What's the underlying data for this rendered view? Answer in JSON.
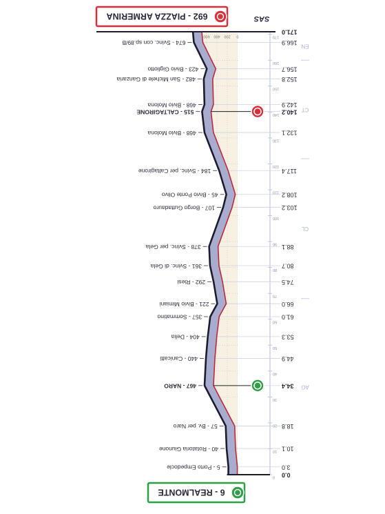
{
  "chart_data": {
    "type": "line",
    "logo": "SAS",
    "x": [
      0,
      3,
      10.1,
      18.8,
      34.4,
      44.9,
      53.3,
      61,
      66,
      74.5,
      80.7,
      88.1,
      103.2,
      108.2,
      117.4,
      132.1,
      140.2,
      142.9,
      152.8,
      156.7,
      166.9,
      171
    ],
    "x_labels": [
      "0.0",
      "3.0",
      "10.1",
      "18.8",
      "34.4",
      "44.9",
      "53.3",
      "61.0",
      "66.0",
      "74.5",
      "80.7",
      "88.1",
      "103.2",
      "108.2",
      "117.4",
      "132.1",
      "140.2",
      "142.9",
      "152.8",
      "156.7",
      "166.9",
      "171.0"
    ],
    "values": [
      6,
      5,
      40,
      57,
      467,
      440,
      404,
      357,
      221,
      292,
      361,
      378,
      107,
      45,
      184,
      468,
      515,
      468,
      482,
      423,
      674,
      692
    ],
    "names": [
      "6 - REALMONTE",
      "5 - Porto Empedocle",
      "40 - Rotatoria Giunone",
      "57 - Bv. per Naro",
      "467 - NARO",
      "440 - Canicatti",
      "404 - Delia",
      "357 - Sommatino",
      "221 - Bivio Mimiani",
      "292 - Riesi",
      "361 - Svinc. di Gela",
      "378 - Svinc. per Gela",
      "107 - Borgo Guttadauro",
      "45 - Bivio Ponte Olivo",
      "184 - Svinc. per Caltagirone",
      "468 - Bivio Molona",
      "515 - CALTAGIRONE",
      "468 - Bivio Molona",
      "482 - San Michele di Ganzaria",
      "423 - Bivio Gigliotto",
      "674 - Svinc. con sp.89/B",
      "692 - PIAZZA ARMERINA"
    ],
    "marker_colors": [
      "#2e9e47",
      null,
      null,
      null,
      "#2e9e47",
      null,
      null,
      null,
      null,
      null,
      null,
      null,
      null,
      null,
      null,
      null,
      "#d6303a",
      null,
      null,
      null,
      null,
      "#d6303a"
    ],
    "regions": [
      {
        "label": "AG",
        "start": 0,
        "end": 68
      },
      {
        "label": "CL",
        "start": 68,
        "end": 122
      },
      {
        "label": "CT",
        "start": 122,
        "end": 160
      },
      {
        "label": "EN",
        "start": 160,
        "end": 171
      }
    ],
    "xlim": [
      0,
      171
    ],
    "xticks": [
      0,
      10,
      20,
      30,
      40,
      50,
      60,
      70,
      80,
      90,
      100,
      110,
      120,
      130,
      140,
      150,
      160,
      170
    ],
    "ylim": [
      0,
      800
    ],
    "yticks": [
      0,
      200,
      400,
      600,
      800
    ],
    "line_color": "#c0283a",
    "edge_color": "#1c1c2e",
    "ribbon_color": "#a8adcf",
    "ground_color": "#f7f1e3",
    "grid": true
  }
}
